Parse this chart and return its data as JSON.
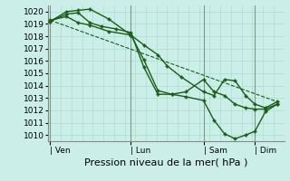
{
  "background_color": "#cceee8",
  "grid_color": "#aaddcc",
  "line_color": "#1a5c1a",
  "marker_color": "#1a5c1a",
  "ylabel_ticks": [
    1010,
    1011,
    1012,
    1013,
    1014,
    1015,
    1016,
    1017,
    1018,
    1019,
    1020
  ],
  "ylim": [
    1009.5,
    1020.5
  ],
  "xlabel": "Pression niveau de la mer( hPa )",
  "xlabel_fontsize": 8,
  "xtick_labels": [
    "| Ven",
    "| Lun",
    "| Sam",
    "| Dim"
  ],
  "xtick_positions": [
    0.0,
    0.345,
    0.655,
    0.875
  ],
  "series": [
    {
      "x": [
        0.0,
        0.07,
        0.12,
        0.17,
        0.25,
        0.345,
        0.4,
        0.46,
        0.5,
        0.56,
        0.655,
        0.7,
        0.745,
        0.79,
        0.835,
        0.875,
        0.92,
        0.97
      ],
      "y": [
        1019.3,
        1019.6,
        1019.1,
        1018.9,
        1018.4,
        1018.1,
        1017.3,
        1016.5,
        1015.6,
        1014.7,
        1013.5,
        1013.2,
        1014.5,
        1014.4,
        1013.2,
        1012.5,
        1012.2,
        1012.7
      ],
      "marker": "P",
      "markersize": 2.5,
      "linestyle": "-",
      "linewidth": 1.0
    },
    {
      "x": [
        0.0,
        0.07,
        0.12,
        0.17,
        0.25,
        0.345,
        0.4,
        0.46,
        0.52,
        0.58,
        0.655,
        0.7,
        0.745,
        0.79,
        0.835,
        0.875,
        0.92,
        0.97
      ],
      "y": [
        1019.2,
        1020.0,
        1020.1,
        1020.2,
        1019.4,
        1018.1,
        1016.1,
        1013.6,
        1013.3,
        1013.1,
        1012.8,
        1011.2,
        1010.1,
        1009.7,
        1010.0,
        1010.3,
        1011.9,
        1012.5
      ],
      "marker": "P",
      "markersize": 2.5,
      "linestyle": "-",
      "linewidth": 1.0
    },
    {
      "x": [
        0.0,
        0.07,
        0.12,
        0.17,
        0.22,
        0.28,
        0.345,
        0.4,
        0.46,
        0.52,
        0.58,
        0.655,
        0.7,
        0.745,
        0.79,
        0.835,
        0.875,
        0.92,
        0.97
      ],
      "y": [
        1019.2,
        1019.8,
        1019.9,
        1019.1,
        1018.8,
        1018.6,
        1018.3,
        1015.5,
        1013.3,
        1013.3,
        1013.5,
        1014.5,
        1013.5,
        1013.2,
        1012.5,
        1012.2,
        1012.1,
        1012.1,
        1012.5
      ],
      "marker": "P",
      "markersize": 2.5,
      "linestyle": "-",
      "linewidth": 1.0
    },
    {
      "x": [
        0.0,
        0.97
      ],
      "y": [
        1019.3,
        1012.7
      ],
      "marker": null,
      "markersize": 0,
      "linestyle": "--",
      "linewidth": 0.8
    }
  ],
  "vline_positions": [
    0.0,
    0.345,
    0.655,
    0.875
  ],
  "vline_color": "#7a9a8a",
  "num_hgrid": 11,
  "num_vgrid": 22,
  "tick_fontsize": 6.5,
  "figsize": [
    3.2,
    2.0
  ],
  "dpi": 100
}
